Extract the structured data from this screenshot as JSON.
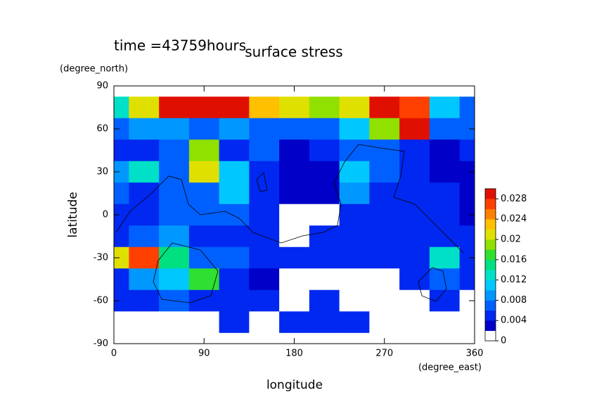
{
  "chart_data": {
    "type": "contour",
    "title": "surface stress",
    "subtitle": "time =43759hours",
    "x_label": "longitude",
    "x_unit": "(degree_east)",
    "y_label": "latitude",
    "y_unit": "(degree_north)",
    "x": [
      0,
      30,
      60,
      90,
      120,
      150,
      180,
      210,
      240,
      270,
      300,
      330,
      360
    ],
    "y": [
      90,
      75,
      60,
      45,
      30,
      15,
      0,
      -15,
      -30,
      -45,
      -60,
      -75,
      -90
    ],
    "z": [
      [
        0,
        0,
        0,
        0,
        0,
        0,
        0,
        0,
        0,
        0,
        0,
        0,
        0
      ],
      [
        0.012,
        0.02,
        0.03,
        0.03,
        0.028,
        0.022,
        0.02,
        0.018,
        0.02,
        0.03,
        0.026,
        0.01,
        0.006
      ],
      [
        0.006,
        0.008,
        0.008,
        0.006,
        0.008,
        0.006,
        0.006,
        0.006,
        0.01,
        0.018,
        0.028,
        0.006,
        0.006
      ],
      [
        0.004,
        0.004,
        0.006,
        0.018,
        0.004,
        0.006,
        0.002,
        0.004,
        0.006,
        0.006,
        0.004,
        0.002,
        0.004
      ],
      [
        0.008,
        0.012,
        0.006,
        0.02,
        0.01,
        0.004,
        0.002,
        0.002,
        0.01,
        0.006,
        0.004,
        0.002,
        0.002
      ],
      [
        0.006,
        0.004,
        0.006,
        0.006,
        0.01,
        0.004,
        0.002,
        0.002,
        0.008,
        0.004,
        0.004,
        0.004,
        0.002
      ],
      [
        0.004,
        0.004,
        0.006,
        0.006,
        0.006,
        0.004,
        0.001,
        0.001,
        0.004,
        0.004,
        0.004,
        0.004,
        0.002
      ],
      [
        0.004,
        0.006,
        0.008,
        0.004,
        0.004,
        0.004,
        0.001,
        0.004,
        0.004,
        0.004,
        0.004,
        0.004,
        0.004
      ],
      [
        0.02,
        0.026,
        0.014,
        0.006,
        0.006,
        0.004,
        0.004,
        0.004,
        0.004,
        0.004,
        0.004,
        0.012,
        0.004
      ],
      [
        0.004,
        0.008,
        0.01,
        0.016,
        0.004,
        0.002,
        0.001,
        0.001,
        0.001,
        0.001,
        0.004,
        0.006,
        0.004
      ],
      [
        0.004,
        0.004,
        0.006,
        0.004,
        0.004,
        0.004,
        0.001,
        0.004,
        0.001,
        0.001,
        0.001,
        0.004,
        0.001
      ],
      [
        0,
        0,
        0,
        0.001,
        0.004,
        0.001,
        0.004,
        0.004,
        0.004,
        0.001,
        0,
        0,
        0
      ],
      [
        0,
        0,
        0,
        0,
        0,
        0,
        0,
        0,
        0,
        0,
        0,
        0,
        0
      ]
    ],
    "xlim": [
      0,
      360
    ],
    "ylim": [
      -90,
      90
    ],
    "xticks": [
      0,
      90,
      180,
      270,
      360
    ],
    "yticks": [
      -90,
      -60,
      -30,
      0,
      30,
      60,
      90
    ],
    "zlim": [
      0,
      0.03
    ],
    "zticks": [
      0,
      0.004,
      0.008,
      0.012,
      0.016,
      0.02,
      0.024,
      0.028
    ],
    "colors": [
      "#ffffff",
      "#0000c8",
      "#0028f0",
      "#0060ff",
      "#0098ff",
      "#00c8ff",
      "#00e0c8",
      "#00e080",
      "#30e030",
      "#90e000",
      "#e0e000",
      "#ffc000",
      "#ff8000",
      "#ff4000",
      "#e01000"
    ]
  }
}
